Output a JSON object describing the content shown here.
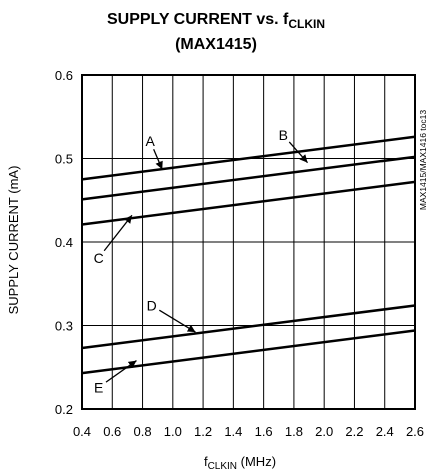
{
  "chart_data": {
    "type": "line",
    "title_line1_main": "SUPPLY CURRENT vs. f",
    "title_line1_sub": "CLKIN",
    "title_line2": "(MAX1415)",
    "xlabel_main": "f",
    "xlabel_sub": "CLKIN",
    "xlabel_unit": " (MHz)",
    "ylabel": "SUPPLY CURRENT (mA)",
    "xlim": [
      0.4,
      2.6
    ],
    "ylim": [
      0.2,
      0.6
    ],
    "x_ticks": [
      "0.4",
      "0.6",
      "0.8",
      "1.0",
      "1.2",
      "1.4",
      "1.6",
      "1.8",
      "2.0",
      "2.2",
      "2.4",
      "2.6"
    ],
    "y_ticks": [
      "0.2",
      "0.3",
      "0.4",
      "0.5",
      "0.6"
    ],
    "grid": true,
    "side_note": "MAX1415/MAX1416 toc13",
    "series": [
      {
        "name": "A",
        "x": [
          0.4,
          2.6
        ],
        "y": [
          0.475,
          0.526
        ],
        "label_x": 0.85,
        "label_y": 0.515,
        "arrow_to_x": 0.93,
        "arrow_to_y": 0.487
      },
      {
        "name": "B",
        "x": [
          0.4,
          2.6
        ],
        "y": [
          0.451,
          0.502
        ],
        "label_x": 1.73,
        "label_y": 0.522,
        "arrow_to_x": 1.89,
        "arrow_to_y": 0.495
      },
      {
        "name": "C",
        "x": [
          0.4,
          2.6
        ],
        "y": [
          0.421,
          0.472
        ],
        "label_x": 0.51,
        "label_y": 0.375,
        "arrow_to_x": 0.73,
        "arrow_to_y": 0.432
      },
      {
        "name": "D",
        "x": [
          0.4,
          2.6
        ],
        "y": [
          0.273,
          0.324
        ],
        "label_x": 0.86,
        "label_y": 0.318,
        "arrow_to_x": 1.15,
        "arrow_to_y": 0.292
      },
      {
        "name": "E",
        "x": [
          0.4,
          2.6
        ],
        "y": [
          0.243,
          0.294
        ],
        "label_x": 0.51,
        "label_y": 0.22,
        "arrow_to_x": 0.76,
        "arrow_to_y": 0.258
      }
    ]
  }
}
